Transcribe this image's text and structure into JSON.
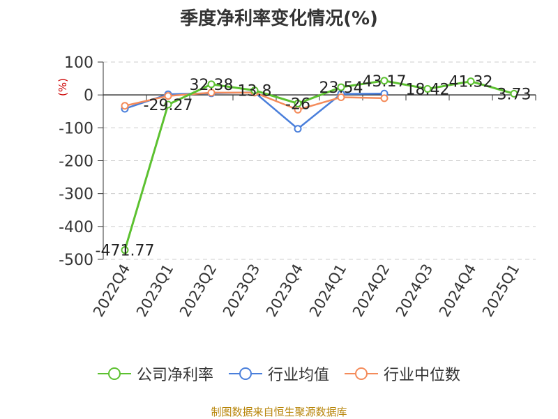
{
  "title": "季度净利率变化情况(%)",
  "source": "制图数据来自恒生聚源数据库",
  "colors": {
    "company": "#5cc130",
    "industry_avg": "#4a7fdb",
    "industry_median": "#f48b5a",
    "label_red": "#cc0000",
    "grid": "#cccccc",
    "axis": "#333333"
  },
  "chart_data": {
    "type": "line",
    "title": "季度净利率变化情况(%)",
    "ylabel": "(%)",
    "xlabel": "",
    "categories": [
      "2022Q4",
      "2023Q1",
      "2023Q2",
      "2023Q3",
      "2023Q4",
      "2024Q1",
      "2024Q2",
      "2024Q3",
      "2024Q4",
      "2025Q1"
    ],
    "ylim": [
      -500,
      100
    ],
    "yticks": [
      100,
      0,
      -100,
      -200,
      -300,
      -400,
      -500
    ],
    "ytick_labels": [
      "100",
      "0",
      "-100",
      "-200",
      "-300",
      "-400",
      "-500"
    ],
    "grid": "horizontal dashed",
    "legend_position": "bottom",
    "series": [
      {
        "name": "公司净利率",
        "values": [
          -471.77,
          -29.27,
          32.38,
          13.8,
          -26,
          23.54,
          43.17,
          18.42,
          41.32,
          3.73
        ],
        "labels": [
          "-471.77",
          "-29.27",
          "32.38",
          "13.8",
          "-26",
          "23.54",
          "43.17",
          "18.42",
          "41.32",
          "3.73"
        ]
      },
      {
        "name": "行业均值",
        "values": [
          -42,
          2,
          5,
          8,
          -103,
          3,
          4,
          null,
          null,
          null
        ]
      },
      {
        "name": "行业中位数",
        "values": [
          -33,
          -3,
          7,
          7,
          -45,
          -7,
          -10,
          null,
          null,
          null
        ]
      }
    ]
  }
}
